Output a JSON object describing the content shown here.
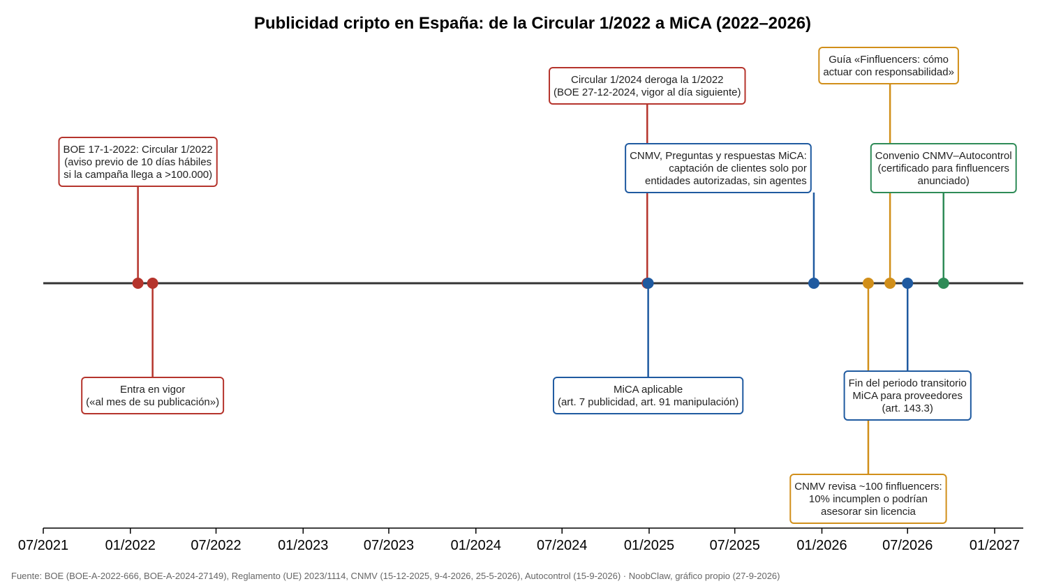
{
  "chart_data": {
    "type": "timeline",
    "title": "Publicidad cripto en España: de la Circular 1/2022 a MiCA (2022–2026)",
    "source": "Fuente: BOE (BOE-A-2022-666, BOE-A-2024-27149), Reglamento (UE) 2023/1114, CNMV (15-12-2025, 9-4-2026, 25-5-2026), Autocontrol (15-9-2026) · NoobClaw, gráfico propio (27-9-2026)",
    "xlim": [
      "2021-07-01",
      "2027-03-01"
    ],
    "x_ticks": [
      {
        "date": "2021-07-01",
        "label": "07/2021"
      },
      {
        "date": "2022-01-01",
        "label": "01/2022"
      },
      {
        "date": "2022-07-01",
        "label": "07/2022"
      },
      {
        "date": "2023-01-01",
        "label": "01/2023"
      },
      {
        "date": "2023-07-01",
        "label": "07/2023"
      },
      {
        "date": "2024-01-01",
        "label": "01/2024"
      },
      {
        "date": "2024-07-01",
        "label": "07/2024"
      },
      {
        "date": "2025-01-01",
        "label": "01/2025"
      },
      {
        "date": "2025-07-01",
        "label": "07/2025"
      },
      {
        "date": "2026-01-01",
        "label": "01/2026"
      },
      {
        "date": "2026-07-01",
        "label": "07/2026"
      },
      {
        "date": "2027-01-01",
        "label": "01/2027"
      }
    ],
    "colors": {
      "boe": "#b5342c",
      "mica": "#1f5aa0",
      "cnmv_revision": "#d18f1a",
      "autocontrol": "#2e8b57",
      "axis": "#333333"
    },
    "events": [
      {
        "id": "boe-circular-2022",
        "date": "2022-01-17",
        "color": "#b5342c",
        "side": "up",
        "level": 2,
        "lines": [
          "BOE 17-1-2022: Circular 1/2022",
          "(aviso previo de 10 días hábiles",
          "si la campaña llega a >100.000)"
        ]
      },
      {
        "id": "entra-en-vigor",
        "date": "2022-02-17",
        "color": "#b5342c",
        "side": "down",
        "level": 1,
        "lines": [
          "Entra en vigor",
          "(«al mes de su publicación»)"
        ]
      },
      {
        "id": "circular-2024",
        "date": "2024-12-28",
        "color": "#b5342c",
        "side": "up",
        "level": 3,
        "lines": [
          "Circular 1/2024 deroga la 1/2022",
          "(BOE 27-12-2024, vigor al día siguiente)"
        ]
      },
      {
        "id": "mica-aplicable",
        "date": "2024-12-30",
        "color": "#1f5aa0",
        "side": "down",
        "level": 1,
        "lines": [
          "MiCA aplicable",
          "(art. 7 publicidad, art. 91 manipulación)"
        ]
      },
      {
        "id": "cnmv-preguntas",
        "date": "2025-12-15",
        "color": "#1f5aa0",
        "side": "up",
        "level": 1,
        "align": "right",
        "lines": [
          "CNMV, Preguntas y respuestas MiCA:",
          "captación de clientes solo por",
          "entidades autorizadas, sin agentes"
        ]
      },
      {
        "id": "cnmv-revisa",
        "date": "2026-04-09",
        "color": "#d18f1a",
        "side": "down",
        "level": 2,
        "lines": [
          "CNMV revisa ~100 finfluencers:",
          "10% incumplen o podrían",
          "asesorar sin licencia"
        ]
      },
      {
        "id": "guia-finfluencers",
        "date": "2026-05-25",
        "color": "#d18f1a",
        "side": "up",
        "level": 4,
        "lines": [
          "Guía «Finfluencers: cómo",
          "actuar con responsabilidad»"
        ]
      },
      {
        "id": "fin-periodo-transitorio",
        "date": "2026-07-01",
        "color": "#1f5aa0",
        "side": "down",
        "level": 1,
        "lines": [
          "Fin del periodo transitorio",
          "MiCA para proveedores",
          "(art. 143.3)"
        ]
      },
      {
        "id": "convenio-autocontrol",
        "date": "2026-09-15",
        "color": "#2e8b57",
        "side": "up",
        "level": 1,
        "lines": [
          "Convenio CNMV–Autocontrol",
          "(certificado para finfluencers",
          "anunciado)"
        ]
      }
    ]
  }
}
